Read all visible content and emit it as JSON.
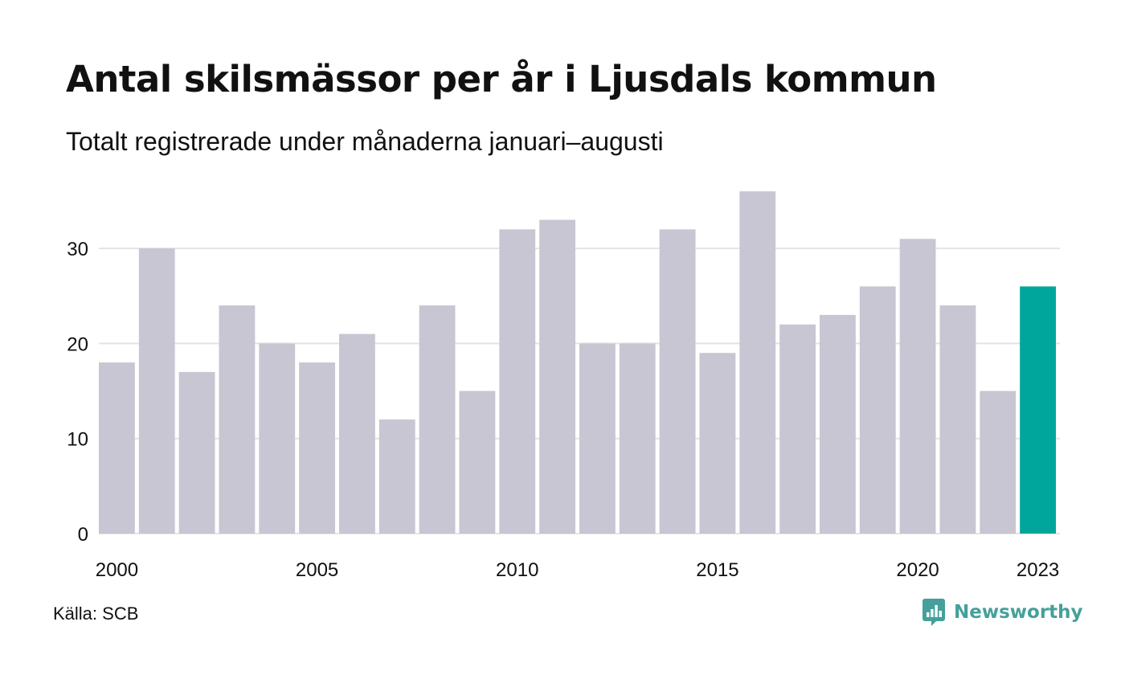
{
  "header": {
    "title": "Antal skilsmässor per år i Ljusdals kommun",
    "subtitle": "Totalt registrerade under månaderna januari–augusti"
  },
  "footer": {
    "source": "Källa: SCB",
    "brand": "Newsworthy"
  },
  "colors": {
    "bar": "#c8c6d2",
    "highlight": "#00a69c",
    "grid": "#e4e4e4",
    "text": "#111111",
    "brand": "#45a09b"
  },
  "chart_data": {
    "type": "bar",
    "title": "Antal skilsmässor per år i Ljusdals kommun",
    "subtitle": "Totalt registrerade under månaderna januari–augusti",
    "categories": [
      2000,
      2001,
      2002,
      2003,
      2004,
      2005,
      2006,
      2007,
      2008,
      2009,
      2010,
      2011,
      2012,
      2013,
      2014,
      2015,
      2016,
      2017,
      2018,
      2019,
      2020,
      2021,
      2022,
      2023
    ],
    "values": [
      18,
      30,
      17,
      24,
      20,
      18,
      21,
      12,
      24,
      15,
      32,
      33,
      20,
      20,
      32,
      19,
      36,
      22,
      23,
      26,
      31,
      24,
      15,
      26
    ],
    "highlight_category": 2023,
    "x_tick_labels": [
      "2000",
      "2005",
      "2010",
      "2015",
      "2020",
      "2023"
    ],
    "y_ticks": [
      0,
      10,
      20,
      30
    ],
    "ylim": [
      0,
      36
    ],
    "xlabel": "",
    "ylabel": "",
    "grid": true,
    "legend": "none"
  }
}
